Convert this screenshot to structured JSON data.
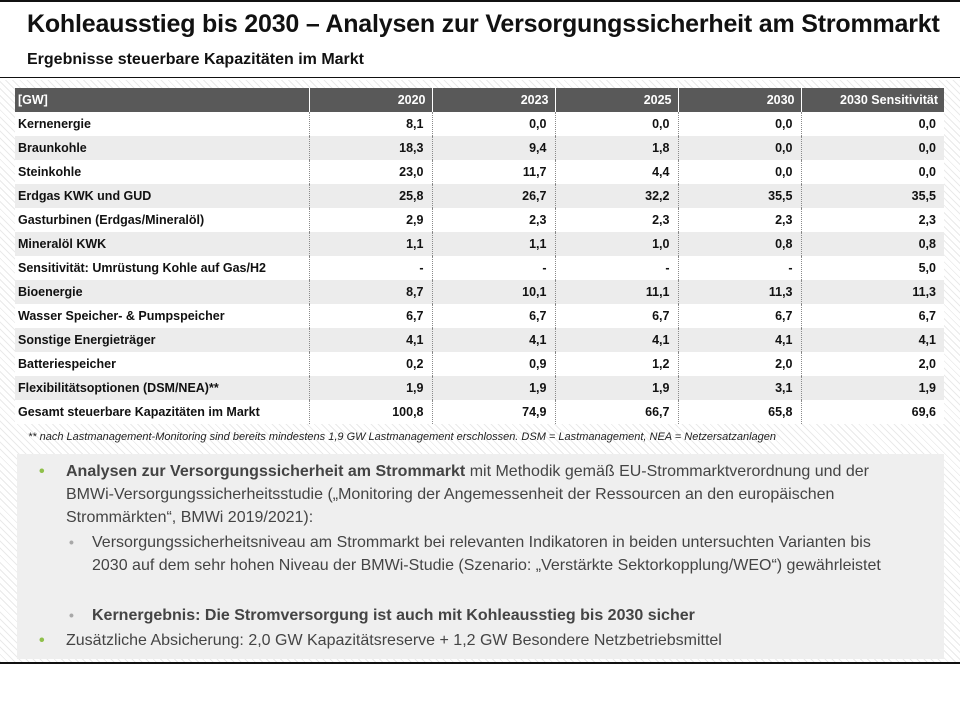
{
  "header": {
    "title": "Kohleausstieg bis 2030 – Analysen zur Versorgungssicherheit am Strommarkt",
    "subtitle": "Ergebnisse steuerbare Kapazitäten im Markt"
  },
  "table": {
    "columns": [
      "[GW]",
      "2020",
      "2023",
      "2025",
      "2030",
      "2030 Sensitivität"
    ],
    "rows": [
      [
        "Kernenergie",
        "8,1",
        "0,0",
        "0,0",
        "0,0",
        "0,0"
      ],
      [
        "Braunkohle",
        "18,3",
        "9,4",
        "1,8",
        "0,0",
        "0,0"
      ],
      [
        "Steinkohle",
        "23,0",
        "11,7",
        "4,4",
        "0,0",
        "0,0"
      ],
      [
        "Erdgas KWK und GUD",
        "25,8",
        "26,7",
        "32,2",
        "35,5",
        "35,5"
      ],
      [
        "Gasturbinen (Erdgas/Mineralöl)",
        "2,9",
        "2,3",
        "2,3",
        "2,3",
        "2,3"
      ],
      [
        "Mineralöl KWK",
        "1,1",
        "1,1",
        "1,0",
        "0,8",
        "0,8"
      ],
      [
        "Sensitivität: Umrüstung Kohle auf Gas/H2",
        "-",
        "-",
        "-",
        "-",
        "5,0"
      ],
      [
        "Bioenergie",
        "8,7",
        "10,1",
        "11,1",
        "11,3",
        "11,3"
      ],
      [
        "Wasser Speicher- & Pumpspeicher",
        "6,7",
        "6,7",
        "6,7",
        "6,7",
        "6,7"
      ],
      [
        "Sonstige Energieträger",
        "4,1",
        "4,1",
        "4,1",
        "4,1",
        "4,1"
      ],
      [
        "Batteriespeicher",
        "0,2",
        "0,9",
        "1,2",
        "2,0",
        "2,0"
      ],
      [
        "Flexibilitätsoptionen (DSM/NEA)**",
        "1,9",
        "1,9",
        "1,9",
        "3,1",
        "1,9"
      ],
      [
        "Gesamt steuerbare Kapazitäten im Markt",
        "100,8",
        "74,9",
        "66,7",
        "65,8",
        "69,6"
      ]
    ],
    "footnote": "** nach Lastmanagement-Monitoring sind bereits mindestens 1,9 GW Lastmanagement erschlossen. DSM = Lastmanagement, NEA = Netzersatzanlagen"
  },
  "bullets": {
    "b1_bold": "Analysen zur Versorgungssicherheit am Strommarkt",
    "b1_rest": " mit Methodik gemäß EU-Strommarktverordnung und der BMWi-Versorgungssicherheitsstudie („Monitoring der Angemessenheit der Ressourcen an den europäischen Strommärkten“, BMWi 2019/2021):",
    "b2": "Versorgungssicherheitsniveau am Strommarkt bei relevanten Indikatoren in beiden untersuchten Varianten bis 2030 auf dem sehr hohen Niveau der BMWi-Studie (Szenario: „Verstärkte Sektorkopplung/WEO“) gewährleistet",
    "b3": "Kernergebnis: Die Stromversorgung ist auch mit Kohleausstieg bis 2030 sicher",
    "b4": "Zusätzliche Absicherung: 2,0 GW Kapazitätsreserve + 1,2 GW Besondere Netzbetriebsmittel",
    "dot": "•",
    "sub_dot": "•"
  },
  "colors": {
    "header_bg": "#595959",
    "accent_green": "#8fc04a",
    "sub_bullet": "#a8a8a8",
    "panel_bg": "#efefef"
  }
}
